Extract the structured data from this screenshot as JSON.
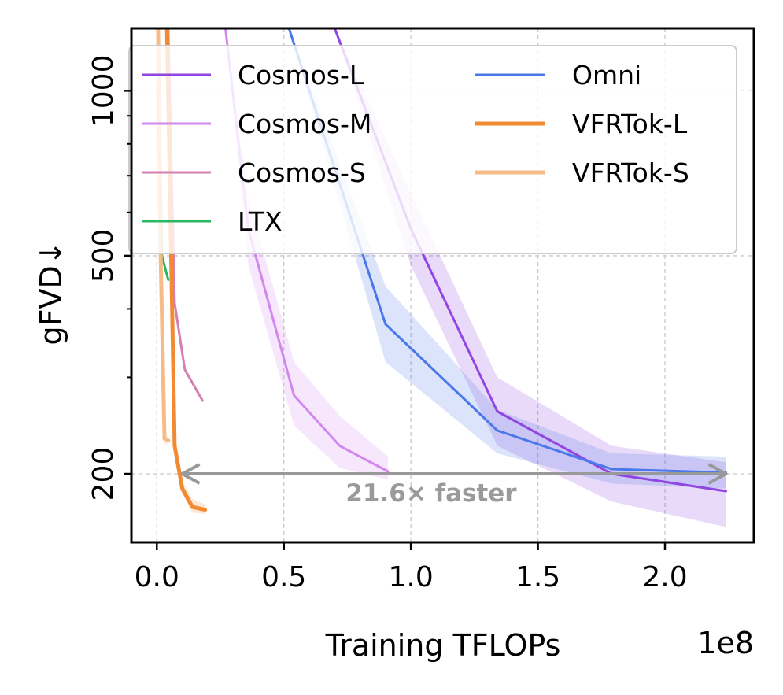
{
  "chart_data": {
    "type": "line",
    "xlabel": "Training TFLOPs",
    "x_offset_text": "1e8",
    "ylabel": "gFVD↓",
    "xlim": [
      -0.1,
      2.35
    ],
    "ylim": [
      150,
      1300
    ],
    "y_scale": "log",
    "x_ticks": [
      0.0,
      0.5,
      1.0,
      1.5,
      2.0
    ],
    "x_tick_labels": [
      "0.0",
      "0.5",
      "1.0",
      "1.5",
      "2.0"
    ],
    "y_ticks": [
      200,
      500,
      1000
    ],
    "y_tick_labels": [
      "200",
      "500",
      "1000"
    ],
    "y_minor_ticks": [
      300,
      400,
      600,
      700,
      800,
      900
    ],
    "grid": true,
    "legend": {
      "placement": "top",
      "columns": 2
    },
    "series": [
      {
        "name": "Cosmos-L",
        "color": "#9146e3",
        "width": 3,
        "band": true,
        "x": [
          0.7,
          1.0,
          1.34,
          1.79,
          2.24
        ],
        "y": [
          1300,
          560,
          260,
          200,
          186
        ],
        "lo": [
          1300,
          480,
          225,
          178,
          160
        ],
        "hi": [
          1300,
          650,
          300,
          225,
          210
        ]
      },
      {
        "name": "Cosmos-M",
        "color": "#d287ef",
        "width": 3,
        "band": true,
        "x": [
          0.27,
          0.36,
          0.54,
          0.72,
          0.91
        ],
        "y": [
          1300,
          560,
          278,
          225,
          202
        ],
        "lo": [
          1300,
          480,
          245,
          205,
          195
        ],
        "hi": [
          1300,
          640,
          320,
          255,
          215
        ]
      },
      {
        "name": "Cosmos-S",
        "color": "#d47fb3",
        "width": 3,
        "band": false,
        "x": [
          0.045,
          0.07,
          0.11,
          0.18
        ],
        "y": [
          1300,
          410,
          310,
          272
        ],
        "lo": [
          1300,
          410,
          310,
          272
        ],
        "hi": [
          1300,
          410,
          310,
          272
        ]
      },
      {
        "name": "LTX",
        "color": "#29b862",
        "width": 3,
        "band": false,
        "x": [
          0.005,
          0.02,
          0.045
        ],
        "y": [
          1300,
          500,
          452
        ],
        "lo": [
          1300,
          500,
          452
        ],
        "hi": [
          1300,
          500,
          452
        ]
      },
      {
        "name": "Omni",
        "color": "#4a78ea",
        "width": 3,
        "band": true,
        "x": [
          0.52,
          0.9,
          1.34,
          1.79,
          2.24
        ],
        "y": [
          1300,
          375,
          240,
          204,
          201
        ],
        "lo": [
          1300,
          320,
          218,
          192,
          188
        ],
        "hi": [
          1300,
          440,
          262,
          218,
          215
        ]
      },
      {
        "name": "VFRTok-L",
        "color": "#f28a33",
        "width": 5,
        "band": true,
        "x": [
          0.04,
          0.07,
          0.1,
          0.14,
          0.19
        ],
        "y": [
          1300,
          225,
          188,
          174,
          172
        ],
        "lo": [
          1300,
          220,
          184,
          170,
          169
        ],
        "hi": [
          1300,
          230,
          194,
          180,
          176
        ]
      },
      {
        "name": "VFRTok-S",
        "color": "#f7bb88",
        "width": 5,
        "band": true,
        "x": [
          0.005,
          0.015,
          0.03,
          0.045
        ],
        "y": [
          1300,
          500,
          232,
          230
        ],
        "lo": [
          1300,
          480,
          226,
          226
        ],
        "hi": [
          1300,
          520,
          238,
          234
        ]
      }
    ],
    "annotation": {
      "text": "21.6× faster",
      "arrow_x": [
        0.1,
        2.24
      ],
      "arrow_y": 200,
      "text_x": 1.08,
      "text_y": 183,
      "color": "#999999"
    }
  }
}
